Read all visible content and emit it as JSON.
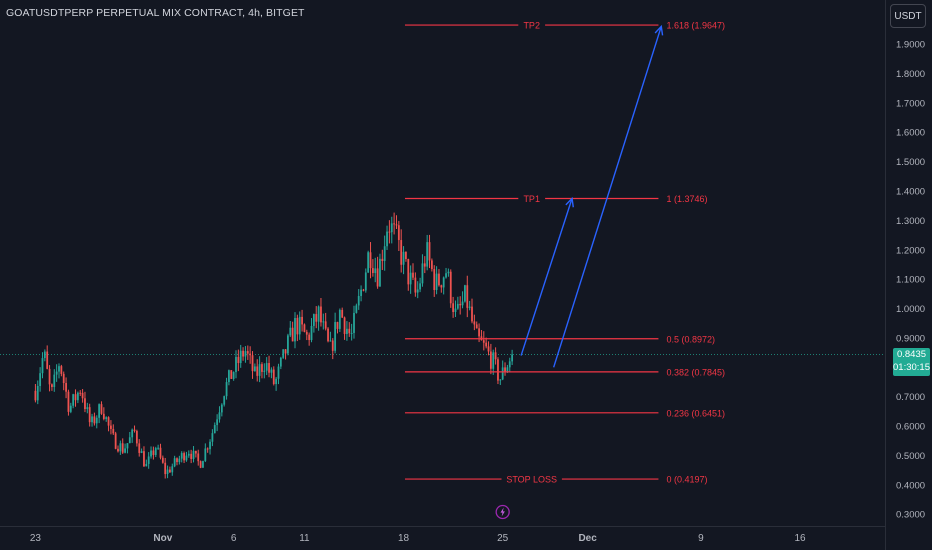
{
  "header": {
    "title": "GOATUSDTPERP PERPETUAL MIX CONTRACT, 4h, BITGET",
    "currency": "USDT"
  },
  "last_price": {
    "value": "0.8435",
    "countdown": "01:30:15"
  },
  "bolt_icon": "lightning-icon",
  "colors": {
    "background": "#131722",
    "up": "#26a69a",
    "down": "#ef5350",
    "fib": "#f23645",
    "arrow": "#2962ff",
    "axis_text": "#b2b5be"
  },
  "chart_data": {
    "type": "candlestick",
    "title": "GOATUSDTPERP PERPETUAL MIX CONTRACT, 4h, BITGET",
    "ylim": [
      0.26,
      2.05
    ],
    "y_ticks": [
      0.3,
      0.4,
      0.5,
      0.6,
      0.7,
      0.8,
      0.9,
      1.0,
      1.1,
      1.2,
      1.3,
      1.4,
      1.5,
      1.6,
      1.7,
      1.8,
      1.9
    ],
    "y_tick_labels": [
      "0.3000",
      "0.4000",
      "0.5000",
      "0.6000",
      "0.7000",
      "0.8000",
      "0.9000",
      "1.0000",
      "1.1000",
      "1.2000",
      "1.3000",
      "1.4000",
      "1.5000",
      "1.6000",
      "1.7000",
      "1.8000",
      "1.9000"
    ],
    "x_ticks": [
      "23",
      "Nov",
      "6",
      "11",
      "18",
      "25",
      "Dec",
      "9",
      "16"
    ],
    "x_tick_days": [
      -9,
      0,
      5,
      10,
      17,
      24,
      30,
      38,
      45
    ],
    "x_range_days": [
      -11.5,
      51
    ],
    "price_anchors": [
      [
        -9.0,
        0.72
      ],
      [
        -8.4,
        0.85
      ],
      [
        -7.9,
        0.7
      ],
      [
        -7.3,
        0.82
      ],
      [
        -6.6,
        0.66
      ],
      [
        -5.8,
        0.73
      ],
      [
        -5.1,
        0.6
      ],
      [
        -4.3,
        0.67
      ],
      [
        -3.6,
        0.56
      ],
      [
        -2.8,
        0.52
      ],
      [
        -2.0,
        0.58
      ],
      [
        -1.2,
        0.46
      ],
      [
        -0.5,
        0.53
      ],
      [
        0.2,
        0.44
      ],
      [
        1.0,
        0.48
      ],
      [
        1.8,
        0.52
      ],
      [
        2.6,
        0.47
      ],
      [
        3.5,
        0.58
      ],
      [
        4.3,
        0.72
      ],
      [
        5.0,
        0.79
      ],
      [
        5.8,
        0.86
      ],
      [
        6.5,
        0.77
      ],
      [
        7.2,
        0.82
      ],
      [
        7.9,
        0.74
      ],
      [
        8.7,
        0.86
      ],
      [
        9.4,
        0.95
      ],
      [
        10.2,
        0.9
      ],
      [
        11.0,
        0.98
      ],
      [
        11.8,
        0.85
      ],
      [
        12.5,
        0.99
      ],
      [
        13.3,
        0.9
      ],
      [
        14.0,
        1.06
      ],
      [
        14.6,
        1.2
      ],
      [
        15.2,
        1.12
      ],
      [
        15.9,
        1.3
      ],
      [
        16.6,
        1.22
      ],
      [
        17.2,
        1.13
      ],
      [
        17.9,
        1.04
      ],
      [
        18.6,
        1.19
      ],
      [
        19.3,
        1.08
      ],
      [
        20.0,
        1.13
      ],
      [
        20.7,
        0.97
      ],
      [
        21.4,
        1.04
      ],
      [
        22.1,
        0.9
      ],
      [
        22.8,
        0.86
      ],
      [
        23.3,
        0.82
      ],
      [
        23.8,
        0.76
      ],
      [
        24.4,
        0.82
      ],
      [
        24.8,
        0.86
      ]
    ],
    "last_close": 0.8435,
    "fibonacci": {
      "start_day": 17.1,
      "end_day": 35,
      "levels": [
        {
          "ratio_label": "1.618 (1.9647)",
          "price": 1.9647,
          "tag": "TP2"
        },
        {
          "ratio_label": "1 (1.3746)",
          "price": 1.3746,
          "tag": "TP1"
        },
        {
          "ratio_label": "0.5 (0.8972)",
          "price": 0.8972,
          "tag": ""
        },
        {
          "ratio_label": "0.382 (0.7845)",
          "price": 0.7845,
          "tag": ""
        },
        {
          "ratio_label": "0.236 (0.6451)",
          "price": 0.6451,
          "tag": ""
        },
        {
          "ratio_label": "0 (0.4197)",
          "price": 0.4197,
          "tag": "STOP LOSS"
        }
      ]
    },
    "arrows": [
      {
        "from": [
          25.3,
          0.84
        ],
        "to": [
          28.9,
          1.375
        ]
      },
      {
        "from": [
          27.6,
          0.8
        ],
        "to": [
          35.2,
          1.96
        ]
      }
    ]
  }
}
